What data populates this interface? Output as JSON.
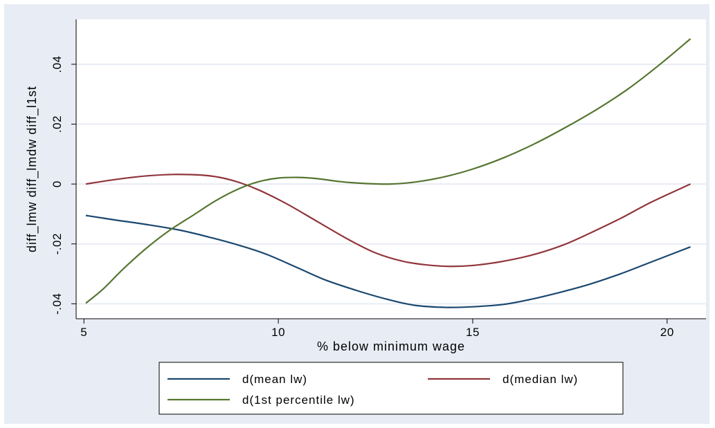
{
  "chart_data": {
    "type": "line",
    "xlabel": "% below minimum wage",
    "ylabel": "diff_lmw diff_lmdw diff_l1st",
    "xlim": [
      4.8,
      21.0
    ],
    "ylim": [
      -0.045,
      0.055
    ],
    "xticks": [
      5,
      10,
      15,
      20
    ],
    "xtick_labels": [
      "5",
      "10",
      "15",
      "20"
    ],
    "yticks": [
      -0.04,
      -0.02,
      0,
      0.02,
      0.04
    ],
    "ytick_labels": [
      "-.04",
      "-.02",
      "0",
      ".02",
      ".04"
    ],
    "grid": true,
    "legend_position": "bottom",
    "series": [
      {
        "name": "d(mean lw)",
        "color": "#1a476f",
        "x": [
          5.05,
          5.8,
          6.6,
          7.5,
          8.3,
          9.0,
          9.7,
          10.5,
          11.2,
          12.0,
          12.8,
          13.5,
          14.3,
          15.0,
          15.8,
          16.5,
          17.3,
          18.0,
          18.8,
          19.6,
          20.6
        ],
        "y": [
          -0.0105,
          -0.012,
          -0.0135,
          -0.0155,
          -0.018,
          -0.0205,
          -0.0235,
          -0.028,
          -0.032,
          -0.0355,
          -0.0385,
          -0.0405,
          -0.0412,
          -0.041,
          -0.0402,
          -0.0385,
          -0.036,
          -0.0335,
          -0.03,
          -0.026,
          -0.021
        ]
      },
      {
        "name": "d(median lw)",
        "color": "#90353b",
        "x": [
          5.05,
          5.8,
          6.6,
          7.3,
          8.0,
          8.5,
          9.0,
          9.5,
          10.2,
          11.0,
          11.8,
          12.5,
          13.2,
          13.8,
          14.4,
          15.0,
          15.7,
          16.5,
          17.3,
          18.0,
          18.8,
          19.6,
          20.6
        ],
        "y": [
          0.0,
          0.0015,
          0.0027,
          0.0032,
          0.003,
          0.0022,
          0.0005,
          -0.002,
          -0.0065,
          -0.0125,
          -0.0185,
          -0.023,
          -0.0258,
          -0.027,
          -0.0275,
          -0.0272,
          -0.026,
          -0.0238,
          -0.0205,
          -0.0165,
          -0.0115,
          -0.006,
          0.0
        ]
      },
      {
        "name": "d(1st percentile lw)",
        "color": "#55752f",
        "x": [
          5.05,
          5.5,
          6.0,
          6.6,
          7.2,
          7.8,
          8.4,
          9.0,
          9.5,
          10.0,
          10.5,
          11.0,
          11.6,
          12.2,
          12.9,
          13.6,
          14.3,
          15.0,
          15.8,
          16.6,
          17.4,
          18.2,
          19.0,
          19.8,
          20.6
        ],
        "y": [
          -0.0398,
          -0.035,
          -0.0285,
          -0.0215,
          -0.0155,
          -0.0105,
          -0.0055,
          -0.0015,
          0.0008,
          0.002,
          0.0022,
          0.0018,
          0.0008,
          0.0002,
          0.0,
          0.0008,
          0.0025,
          0.005,
          0.0088,
          0.0135,
          0.019,
          0.025,
          0.0318,
          0.0398,
          0.0485
        ]
      }
    ]
  },
  "legend": {
    "items": [
      "d(mean lw)",
      "d(median lw)",
      "d(1st percentile lw)"
    ]
  }
}
